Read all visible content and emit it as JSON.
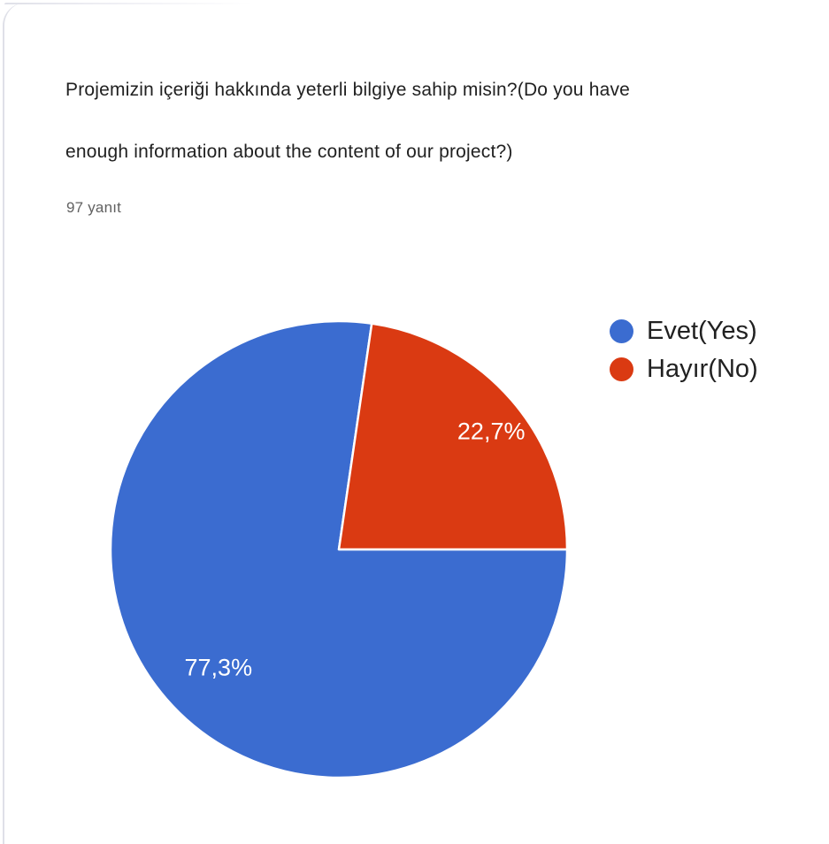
{
  "card": {
    "question_line1": "Projemizin içeriği hakkında yeterli bilgiye sahip misin?(Do you have",
    "question_line2": "enough information about the content of our project?)",
    "responses_count": "97 yanıt"
  },
  "chart_data": {
    "type": "pie",
    "title": "Projemizin içeriği hakkında yeterli bilgiye sahip misin?(Do you have enough information about the content of our project?)",
    "subtitle": "97 yanıt",
    "categories": [
      "Evet(Yes)",
      "Hayır(No)"
    ],
    "values": [
      77.3,
      22.7
    ],
    "value_labels": [
      "77,3%",
      "22,7%"
    ],
    "colors": [
      "#3b6cd0",
      "#da3a12"
    ],
    "label_color": "#ffffff",
    "legend_position": "right",
    "start_angle_deg": 0,
    "direction": "clockwise"
  }
}
